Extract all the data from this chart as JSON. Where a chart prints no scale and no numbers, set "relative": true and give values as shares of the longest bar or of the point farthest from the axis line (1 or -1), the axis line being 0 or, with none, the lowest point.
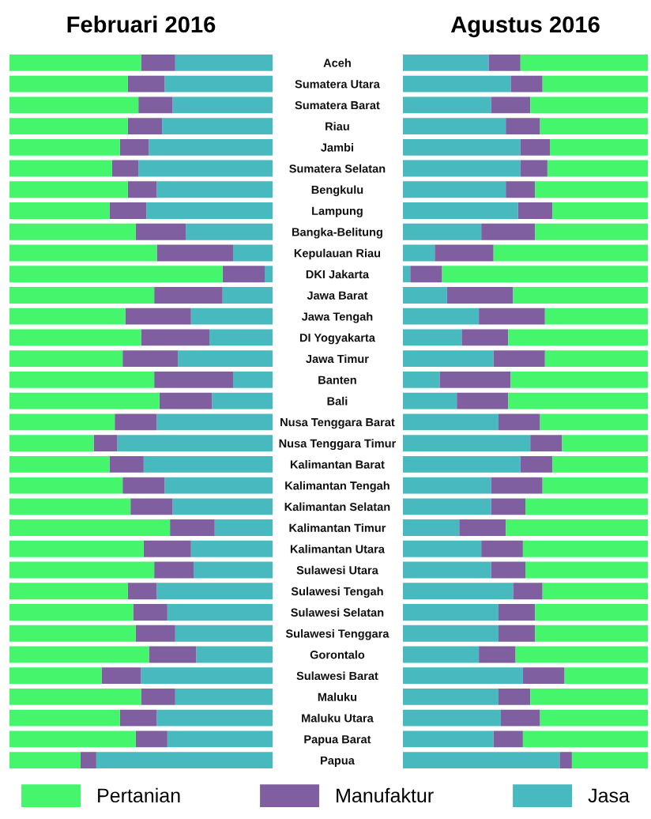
{
  "chart_data": [
    {
      "type": "bar",
      "title": "Februari 2016",
      "orientation": "horizontal",
      "stacked": true,
      "relative": true,
      "tick_labels": "y",
      "legend": "bottom",
      "grid": false,
      "categories": [
        "Aceh",
        "Sumatera Utara",
        "Sumatera Barat",
        "Riau",
        "Jambi",
        "Sumatera Selatan",
        "Bengkulu",
        "Lampung",
        "Bangka-Belitung",
        "Kepulauan Riau",
        "DKI Jakarta",
        "Jawa Barat",
        "Jawa Tengah",
        "DI Yogyakarta",
        "Jawa Timur",
        "Banten",
        "Bali",
        "Nusa Tenggara Barat",
        "Nusa Tenggara Timur",
        "Kalimantan Barat",
        "Kalimantan Tengah",
        "Kalimantan Selatan",
        "Kalimantan Timur",
        "Kalimantan Utara",
        "Sulawesi Utara",
        "Sulawesi Tengah",
        "Sulawesi Selatan",
        "Sulawesi Tenggara",
        "Gorontalo",
        "Sulawesi Barat",
        "Maluku",
        "Maluku Utara",
        "Papua Barat",
        "Papua"
      ],
      "series": [
        {
          "name": "Jasa",
          "color": "#47b9bf",
          "values": [
            0.37,
            0.41,
            0.38,
            0.42,
            0.47,
            0.51,
            0.44,
            0.48,
            0.33,
            0.15,
            0.03,
            0.19,
            0.31,
            0.24,
            0.36,
            0.15,
            0.23,
            0.44,
            0.59,
            0.49,
            0.41,
            0.38,
            0.22,
            0.31,
            0.3,
            0.44,
            0.4,
            0.37,
            0.29,
            0.5,
            0.37,
            0.44,
            0.4,
            0.67
          ]
        },
        {
          "name": "Manufaktur",
          "color": "#7f5fa0",
          "values": [
            0.13,
            0.14,
            0.13,
            0.13,
            0.11,
            0.1,
            0.11,
            0.14,
            0.19,
            0.29,
            0.16,
            0.26,
            0.25,
            0.26,
            0.21,
            0.3,
            0.2,
            0.16,
            0.09,
            0.13,
            0.16,
            0.16,
            0.17,
            0.18,
            0.15,
            0.11,
            0.13,
            0.15,
            0.18,
            0.15,
            0.13,
            0.14,
            0.12,
            0.06
          ]
        },
        {
          "name": "Pertanian",
          "color": "#45f56c",
          "values": [
            0.5,
            0.45,
            0.49,
            0.45,
            0.42,
            0.39,
            0.45,
            0.38,
            0.48,
            0.56,
            0.81,
            0.55,
            0.44,
            0.5,
            0.43,
            0.55,
            0.57,
            0.4,
            0.32,
            0.38,
            0.43,
            0.46,
            0.61,
            0.51,
            0.55,
            0.45,
            0.47,
            0.48,
            0.53,
            0.35,
            0.5,
            0.42,
            0.48,
            0.27
          ]
        }
      ]
    },
    {
      "type": "bar",
      "title": "Agustus 2016",
      "orientation": "horizontal",
      "stacked": true,
      "relative": true,
      "tick_labels": false,
      "legend": false,
      "grid": false,
      "categories": [
        null,
        null,
        null,
        null,
        null,
        null,
        null,
        null,
        null,
        null,
        null,
        null,
        null,
        null,
        null,
        null,
        null,
        null,
        null,
        null,
        null,
        null,
        null,
        null,
        null,
        null,
        null,
        null,
        null,
        null,
        null,
        null,
        null,
        null
      ],
      "series": [
        {
          "color": "#47b9bf",
          "values": [
            0.35,
            0.44,
            0.36,
            0.42,
            0.48,
            0.48,
            0.42,
            0.47,
            0.32,
            0.13,
            0.03,
            0.18,
            0.31,
            0.24,
            0.37,
            0.15,
            0.22,
            0.39,
            0.52,
            0.48,
            0.36,
            0.36,
            0.23,
            0.32,
            0.36,
            0.45,
            0.39,
            0.39,
            0.31,
            0.49,
            0.39,
            0.4,
            0.37,
            0.64
          ]
        },
        {
          "color": "#7f5fa0",
          "values": [
            0.13,
            0.13,
            0.16,
            0.14,
            0.12,
            0.11,
            0.12,
            0.14,
            0.22,
            0.24,
            0.13,
            0.27,
            0.27,
            0.19,
            0.21,
            0.29,
            0.21,
            0.17,
            0.13,
            0.13,
            0.21,
            0.14,
            0.19,
            0.17,
            0.14,
            0.12,
            0.15,
            0.15,
            0.15,
            0.17,
            0.13,
            0.16,
            0.12,
            0.05
          ]
        },
        {
          "color": "#45f56c",
          "values": [
            0.52,
            0.43,
            0.48,
            0.44,
            0.4,
            0.41,
            0.46,
            0.39,
            0.46,
            0.63,
            0.84,
            0.55,
            0.42,
            0.57,
            0.42,
            0.56,
            0.57,
            0.44,
            0.35,
            0.39,
            0.43,
            0.5,
            0.58,
            0.51,
            0.5,
            0.43,
            0.46,
            0.46,
            0.54,
            0.34,
            0.48,
            0.44,
            0.51,
            0.31
          ]
        }
      ]
    }
  ]
}
